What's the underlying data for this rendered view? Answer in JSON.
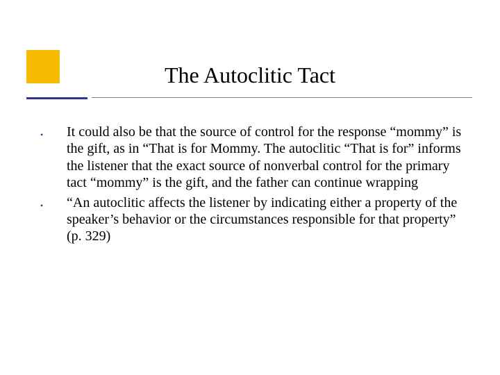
{
  "slide": {
    "title": "The Autoclitic Tact",
    "bullets": [
      "It could also be that the source of control for the response “mommy” is the gift, as in “That is for Mommy.  The autoclitic “That is for” informs the listener that the exact source of nonverbal control for the primary tact “mommy” is the gift, and the father can continue wrapping",
      "“An autoclitic affects the listener by indicating either a property of the speaker’s behavior or the circumstances responsible for that property” (p. 329)"
    ]
  },
  "styling": {
    "accent_color": "#f6bb00",
    "underline_primary": "#333399",
    "underline_secondary": "#808080",
    "text_color": "#000000",
    "bullet_color": "#333399",
    "background": "#ffffff",
    "title_fontsize": 32,
    "body_fontsize": 20
  }
}
